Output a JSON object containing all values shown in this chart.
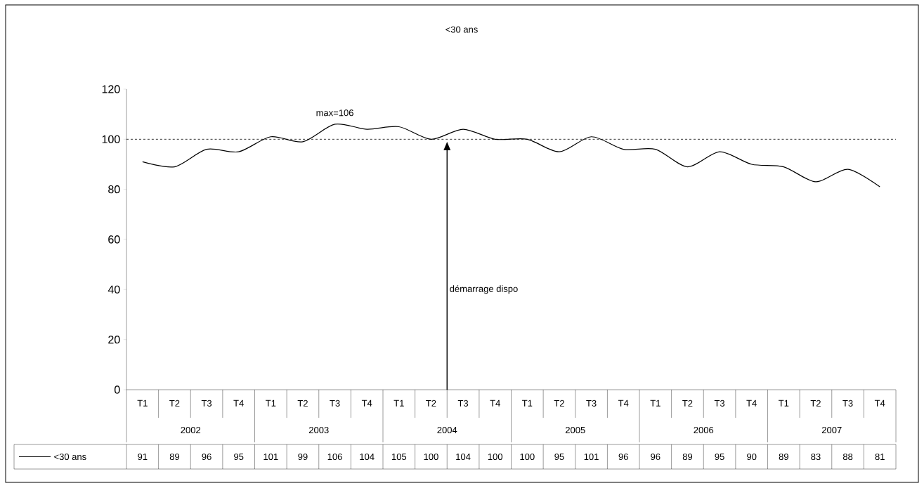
{
  "chart_data": {
    "type": "line",
    "title": "<30 ans",
    "categories": [
      "T1",
      "T2",
      "T3",
      "T4",
      "T1",
      "T2",
      "T3",
      "T4",
      "T1",
      "T2",
      "T3",
      "T4",
      "T1",
      "T2",
      "T3",
      "T4",
      "T1",
      "T2",
      "T3",
      "T4",
      "T1",
      "T2",
      "T3",
      "T4"
    ],
    "series": [
      {
        "name": "<30 ans",
        "color": "#000000",
        "values": [
          91,
          89,
          96,
          95,
          101,
          99,
          106,
          104,
          105,
          100,
          104,
          100,
          100,
          95,
          101,
          96,
          96,
          89,
          95,
          90,
          89,
          83,
          88,
          81
        ]
      }
    ],
    "ylim": [
      0,
      120
    ],
    "yticks": [
      0,
      20,
      40,
      60,
      80,
      100,
      120
    ],
    "ref_lines": [
      {
        "axis": "y",
        "value": 100,
        "line_style": "dashed",
        "color": "#000000"
      }
    ],
    "annotations": [
      "max=106",
      "démarrage dispo",
      "2002",
      "2003",
      "2004",
      "2005",
      "2006",
      "2007"
    ],
    "data_labels": true,
    "legend": "bottom",
    "grid": false,
    "marker": "none",
    "line_style": "solid"
  }
}
